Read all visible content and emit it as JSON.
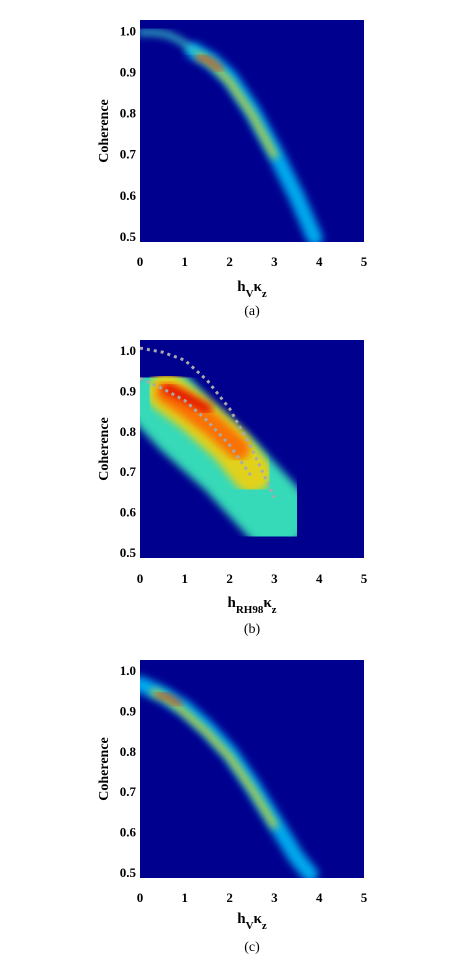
{
  "chart_data": [
    {
      "type": "density",
      "ylabel": "Coherence",
      "xlabel": [
        {
          "text": "h"
        },
        {
          "text": "V",
          "sub": true
        },
        {
          "text": "κ"
        },
        {
          "text": "z",
          "sub": true
        }
      ],
      "caption": "(a)",
      "background": "#00008f",
      "xlim": [
        0,
        5
      ],
      "xticks": [
        0,
        1,
        2,
        3,
        4,
        5
      ],
      "ylim": [
        0.49,
        1.03
      ],
      "yticks": [
        0.5,
        0.6,
        0.7,
        0.8,
        0.9,
        {
          "value": 1,
          "label": "1.0"
        }
      ],
      "series": [
        {
          "color": "#00c8ff",
          "x": [
            1.2,
            1.6,
            2,
            2.5,
            3,
            3.5,
            3.9
          ],
          "values": [
            0.955,
            0.93,
            0.89,
            0.81,
            0.71,
            0.6,
            0.5
          ]
        },
        {
          "color": "#40e0d0",
          "x": [
            0,
            0.3,
            0.6,
            0.9,
            1.2
          ],
          "values": [
            1.0,
            1.0,
            0.995,
            0.98,
            0.955
          ]
        },
        {
          "color": "#ffe000",
          "x": [
            1.3,
            1.6,
            2,
            2.5,
            3
          ],
          "values": [
            0.945,
            0.925,
            0.88,
            0.8,
            0.7
          ]
        },
        {
          "color": "#e00000",
          "x": [
            1.3,
            1.5,
            1.8
          ],
          "values": [
            0.94,
            0.935,
            0.91
          ]
        }
      ]
    },
    {
      "type": "density",
      "ylabel": "Coherence",
      "xlabel": [
        {
          "text": "h"
        },
        {
          "text": "RH98",
          "sub": true
        },
        {
          "text": "κ"
        },
        {
          "text": "z",
          "sub": true
        }
      ],
      "caption": "(b)",
      "background": "#00008f",
      "xlim": [
        0,
        5
      ],
      "xticks": [
        0,
        1,
        2,
        3,
        4,
        5
      ],
      "ylim": [
        0.49,
        1.03
      ],
      "yticks": [
        0.5,
        0.6,
        0.7,
        0.8,
        0.9,
        {
          "value": 1,
          "label": "1.0"
        }
      ],
      "series": [
        {
          "color": "#40ffc0",
          "x": [
            0.5,
            1,
            2,
            3
          ],
          "values": [
            0.88,
            0.82,
            0.72,
            0.6
          ]
        },
        {
          "color": "#ffd000",
          "x": [
            0.6,
            1.2,
            2,
            2.5
          ],
          "values": [
            0.9,
            0.85,
            0.77,
            0.7
          ]
        },
        {
          "color": "#ff6000",
          "x": [
            0.6,
            1,
            1.6,
            2.2
          ],
          "values": [
            0.9,
            0.87,
            0.82,
            0.76
          ]
        },
        {
          "color": "#e00000",
          "x": [
            0.6,
            1,
            1.5
          ],
          "values": [
            0.91,
            0.89,
            0.86
          ]
        }
      ],
      "reference_curves": {
        "color": "#aaaaaa",
        "linestyle": "dotted",
        "curves": [
          {
            "x": [
              0,
              0.5,
              1,
              1.5,
              2,
              2.5,
              3
            ],
            "values": [
              1.01,
              1.0,
              0.98,
              0.93,
              0.86,
              0.76,
              0.64
            ]
          },
          {
            "x": [
              0,
              0.5,
              1,
              1.5,
              2,
              2.5
            ],
            "values": [
              0.935,
              0.91,
              0.88,
              0.83,
              0.77,
              0.69
            ]
          }
        ]
      }
    },
    {
      "type": "density",
      "ylabel": "Coherence",
      "xlabel": [
        {
          "text": "h"
        },
        {
          "text": "V",
          "sub": true
        },
        {
          "text": "κ"
        },
        {
          "text": "z",
          "sub": true
        }
      ],
      "caption": "(c)",
      "background": "#00008f",
      "xlim": [
        0,
        5
      ],
      "xticks": [
        0,
        1,
        2,
        3,
        4,
        5
      ],
      "ylim": [
        0.49,
        1.03
      ],
      "yticks": [
        0.5,
        0.6,
        0.7,
        0.8,
        0.9,
        {
          "value": 1,
          "label": "1.0"
        }
      ],
      "series": [
        {
          "color": "#00c8ff",
          "x": [
            0,
            0.5,
            1,
            1.5,
            2,
            2.5,
            3,
            3.5,
            3.8
          ],
          "values": [
            0.97,
            0.945,
            0.91,
            0.86,
            0.8,
            0.72,
            0.63,
            0.54,
            0.5
          ]
        },
        {
          "color": "#ffe000",
          "x": [
            0.3,
            0.6,
            1,
            1.5,
            2,
            2.5,
            3
          ],
          "values": [
            0.95,
            0.935,
            0.9,
            0.85,
            0.79,
            0.71,
            0.62
          ]
        },
        {
          "color": "#e00000",
          "x": [
            0.4,
            0.6,
            0.9
          ],
          "values": [
            0.945,
            0.94,
            0.92
          ]
        }
      ]
    }
  ]
}
